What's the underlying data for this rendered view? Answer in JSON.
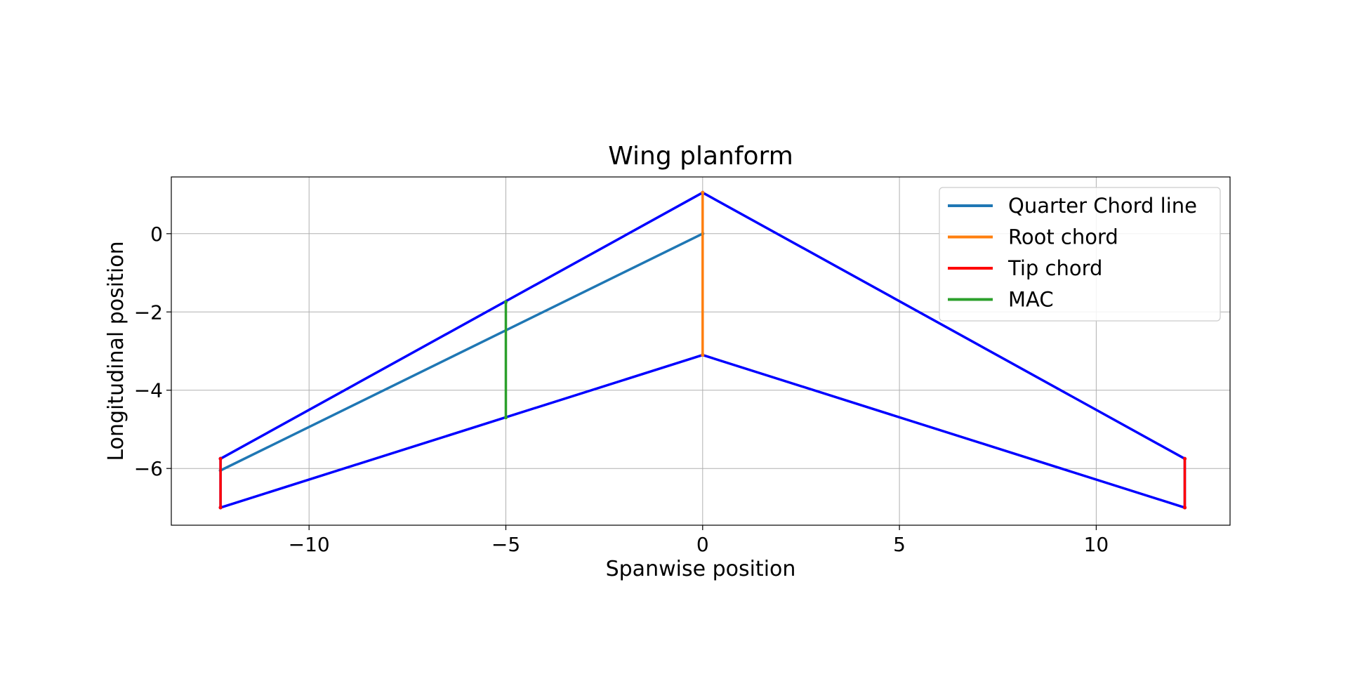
{
  "chart_data": {
    "type": "line",
    "title": "Wing planform",
    "xlabel": "Spanwise position",
    "ylabel": "Longitudinal position",
    "xlim": [
      -13.5,
      13.4
    ],
    "ylim": [
      -7.45,
      1.45
    ],
    "xticks": [
      -10,
      -5,
      0,
      5,
      10
    ],
    "xtick_labels": [
      "−10",
      "−5",
      "0",
      "5",
      "10"
    ],
    "yticks": [
      0,
      -2,
      -4,
      -6
    ],
    "ytick_labels": [
      "0",
      "−2",
      "−4",
      "−6"
    ],
    "grid": true,
    "legend_position": "top-right",
    "series": [
      {
        "name": "",
        "color": "#0000ff",
        "in_legend": false,
        "x": [
          -12.25,
          0,
          12.25,
          12.25,
          0,
          -12.25,
          -12.25
        ],
        "y": [
          -5.75,
          1.05,
          -5.75,
          -7.0,
          -3.1,
          -7.0,
          -5.75
        ]
      },
      {
        "name": "Quarter Chord line",
        "color": "#1f77b4",
        "in_legend": true,
        "x": [
          -12.25,
          0
        ],
        "y": [
          -6.05,
          0
        ]
      },
      {
        "name": "Root chord",
        "color": "#ff7f0e",
        "in_legend": true,
        "x": [
          0,
          0
        ],
        "y": [
          1.05,
          -3.1
        ]
      },
      {
        "name": "Tip chord",
        "color": "#ff0000",
        "in_legend": true,
        "x": [
          -12.25,
          -12.25
        ],
        "y": [
          -5.75,
          -7.0
        ],
        "extra_segments": [
          {
            "x": [
              12.25,
              12.25
            ],
            "y": [
              -5.75,
              -7.0
            ]
          }
        ]
      },
      {
        "name": "MAC",
        "color": "#2ca02c",
        "in_legend": true,
        "x": [
          -5.0,
          -5.0
        ],
        "y": [
          -1.75,
          -4.7
        ]
      }
    ]
  }
}
